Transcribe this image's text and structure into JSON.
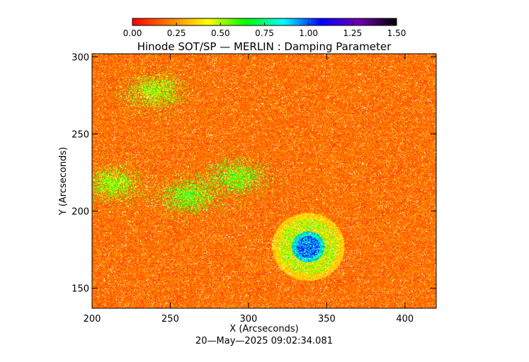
{
  "chart_data": {
    "type": "heatmap",
    "title": "Hinode SOT/SP — MERLIN : Damping Parameter",
    "xlabel": "X (Arcseconds)",
    "ylabel": "Y (Arcseconds)",
    "xlim": [
      200,
      420
    ],
    "ylim": [
      137,
      302
    ],
    "xticks": [
      200,
      250,
      300,
      350,
      400
    ],
    "yticks": [
      150,
      200,
      250,
      300
    ],
    "colorbar": {
      "range": [
        0.0,
        1.5
      ],
      "ticks": [
        "0.00",
        "0.25",
        "0.50",
        "0.75",
        "1.00",
        "1.25",
        "1.50"
      ],
      "colormap": [
        "#ff0000",
        "#ff8000",
        "#ffff00",
        "#00ff00",
        "#00ffff",
        "#0000ff",
        "#7000b0",
        "#000000"
      ]
    },
    "features": {
      "background_value": 0.08,
      "sunspot": {
        "x": 338,
        "y": 177,
        "umbra_value": 1.0,
        "penumbra_value": 0.45
      },
      "plage_regions": [
        {
          "x": 240,
          "y": 278,
          "value": 0.55
        },
        {
          "x": 262,
          "y": 210,
          "value": 0.6
        },
        {
          "x": 292,
          "y": 222,
          "value": 0.6
        },
        {
          "x": 213,
          "y": 218,
          "value": 0.55
        }
      ]
    }
  },
  "footer": {
    "timestamp": "20—May—2025 09:02:34.081"
  }
}
